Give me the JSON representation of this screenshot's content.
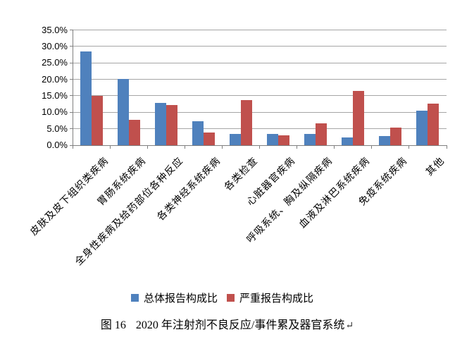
{
  "chart_data": {
    "type": "bar",
    "title": "",
    "categories": [
      "皮肤及皮下组织类疾病",
      "胃肠系统疾病",
      "全身性疾病及给药部位各种反应",
      "各类神经系统疾病",
      "各类检查",
      "心脏器官疾病",
      "呼吸系统、胸及纵隔疾病",
      "血液及淋巴系统疾病",
      "免疫系统疾病",
      "其他"
    ],
    "series": [
      {
        "key": "overall",
        "name": "总体报告构成比",
        "color": "#4F81BD",
        "values": [
          28.4,
          20.1,
          12.8,
          7.3,
          3.4,
          3.4,
          3.5,
          2.4,
          2.7,
          10.5
        ]
      },
      {
        "key": "serious",
        "name": "严重报告构成比",
        "color": "#C0504D",
        "values": [
          15.0,
          7.8,
          12.2,
          3.9,
          13.6,
          2.9,
          6.7,
          16.4,
          5.4,
          12.6
        ]
      }
    ],
    "ylim": [
      0,
      35
    ],
    "ytick_step": 5,
    "ytick_labels": [
      "0.0%",
      "5.0%",
      "10.0%",
      "15.0%",
      "20.0%",
      "25.0%",
      "30.0%",
      "35.0%"
    ],
    "xlabel": "",
    "ylabel": "",
    "grid": true,
    "legend_position": "bottom",
    "x_label_rotation_deg": 45
  },
  "caption": {
    "figure_label": "图 16",
    "text": "2020 年注射剂不良反应/事件累及器官系统",
    "paragraph_mark": "↵"
  },
  "colors": {
    "overall_series": "#4F81BD",
    "serious_series": "#C0504D",
    "gridline": "#a6a6a6",
    "axis": "#7f7f7f",
    "background": "#ffffff"
  }
}
